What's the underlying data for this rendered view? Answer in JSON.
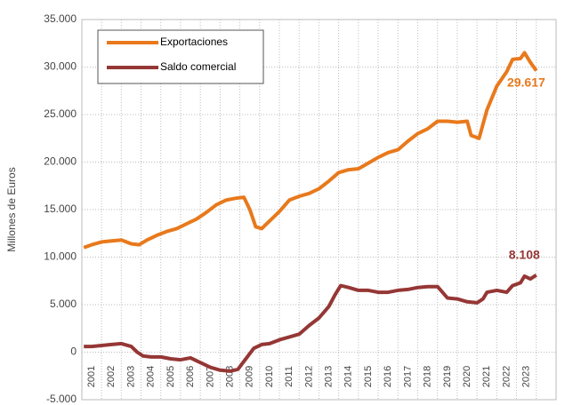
{
  "chart_data": {
    "type": "line",
    "y_label": "Millones de Euros",
    "xlim": [
      2000.5,
      2024.5
    ],
    "xticks": [
      2001,
      2002,
      2003,
      2004,
      2005,
      2006,
      2007,
      2008,
      2009,
      2010,
      2011,
      2012,
      2013,
      2014,
      2015,
      2016,
      2017,
      2018,
      2019,
      2020,
      2021,
      2022,
      2023
    ],
    "ylim": [
      -5000,
      35000
    ],
    "yticks": [
      {
        "value": -5000,
        "label": "-5.000"
      },
      0,
      {
        "value": 5000,
        "label": "5.000"
      },
      {
        "value": 10000,
        "label": "10.000"
      },
      {
        "value": 15000,
        "label": "15.000"
      },
      {
        "value": 20000,
        "label": "20.000"
      },
      {
        "value": 25000,
        "label": "25.000"
      },
      {
        "value": 30000,
        "label": "30.000"
      },
      {
        "value": 35000,
        "label": "35.000"
      }
    ],
    "grid": true,
    "legend": "upper left",
    "series": [
      {
        "name": "Exportaciones",
        "color": "#e8791c",
        "x": [
          2000.6,
          2001,
          2001.5,
          2002,
          2002.5,
          2003,
          2003.4,
          2003.8,
          2004.3,
          2004.8,
          2005.3,
          2005.8,
          2006.3,
          2006.8,
          2007.3,
          2007.8,
          2008.3,
          2008.7,
          2009.0,
          2009.3,
          2009.6,
          2010,
          2010.5,
          2011,
          2011.5,
          2012,
          2012.5,
          2013,
          2013.5,
          2014,
          2014.5,
          2015,
          2015.5,
          2016,
          2016.5,
          2017,
          2017.5,
          2018,
          2018.5,
          2019,
          2019.5,
          2020.0,
          2020.2,
          2020.6,
          2021,
          2021.5,
          2022,
          2022.3,
          2022.7,
          2022.9,
          2023.2,
          2023.5
        ],
        "values": [
          11000,
          11300,
          11600,
          11700,
          11800,
          11400,
          11300,
          11800,
          12300,
          12700,
          13000,
          13500,
          14000,
          14700,
          15500,
          16000,
          16200,
          16300,
          15000,
          13200,
          13000,
          13800,
          14800,
          16000,
          16400,
          16700,
          17200,
          18000,
          18900,
          19200,
          19300,
          19900,
          20500,
          21000,
          21300,
          22200,
          23000,
          23500,
          24300,
          24300,
          24200,
          24300,
          22800,
          22500,
          25500,
          28000,
          29500,
          30800,
          30900,
          31500,
          30500,
          29617
        ],
        "value_labels": [
          null,
          null,
          null,
          null,
          null,
          null,
          null,
          null,
          null,
          null,
          null,
          null,
          null,
          null,
          null,
          null,
          null,
          null,
          null,
          null,
          null,
          null,
          null,
          null,
          null,
          null,
          null,
          null,
          null,
          null,
          null,
          null,
          null,
          null,
          null,
          null,
          null,
          null,
          null,
          null,
          null,
          null,
          null,
          null,
          null,
          null,
          null,
          null,
          null,
          null,
          null,
          "29.617"
        ]
      },
      {
        "name": "Saldo comercial",
        "color": "#953735",
        "x": [
          2000.6,
          2001,
          2001.5,
          2002,
          2002.5,
          2003,
          2003.3,
          2003.6,
          2004,
          2004.5,
          2005,
          2005.5,
          2006,
          2006.5,
          2007,
          2007.5,
          2008,
          2008.4,
          2008.8,
          2009.2,
          2009.6,
          2010,
          2010.5,
          2011,
          2011.5,
          2012,
          2012.5,
          2013,
          2013.3,
          2013.6,
          2014,
          2014.5,
          2015,
          2015.5,
          2016,
          2016.5,
          2017,
          2017.5,
          2018,
          2018.5,
          2019,
          2019.5,
          2020,
          2020.5,
          2020.8,
          2021,
          2021.5,
          2022,
          2022.3,
          2022.7,
          2022.9,
          2023.2,
          2023.5
        ],
        "values": [
          600,
          600,
          700,
          800,
          900,
          600,
          0,
          -400,
          -500,
          -500,
          -700,
          -800,
          -600,
          -1100,
          -1600,
          -1900,
          -2000,
          -1800,
          -700,
          400,
          800,
          900,
          1300,
          1600,
          1900,
          2800,
          3600,
          4800,
          6000,
          7000,
          6800,
          6500,
          6500,
          6300,
          6300,
          6500,
          6600,
          6800,
          6900,
          6900,
          5700,
          5600,
          5300,
          5200,
          5600,
          6300,
          6500,
          6300,
          7000,
          7300,
          8000,
          7700,
          8108
        ],
        "value_labels": [
          null,
          null,
          null,
          null,
          null,
          null,
          null,
          null,
          null,
          null,
          null,
          null,
          null,
          null,
          null,
          null,
          null,
          null,
          null,
          null,
          null,
          null,
          null,
          null,
          null,
          null,
          null,
          null,
          null,
          null,
          null,
          null,
          null,
          null,
          null,
          null,
          null,
          null,
          null,
          null,
          null,
          null,
          null,
          null,
          null,
          null,
          null,
          null,
          null,
          null,
          null,
          null,
          "8.108"
        ]
      }
    ]
  }
}
